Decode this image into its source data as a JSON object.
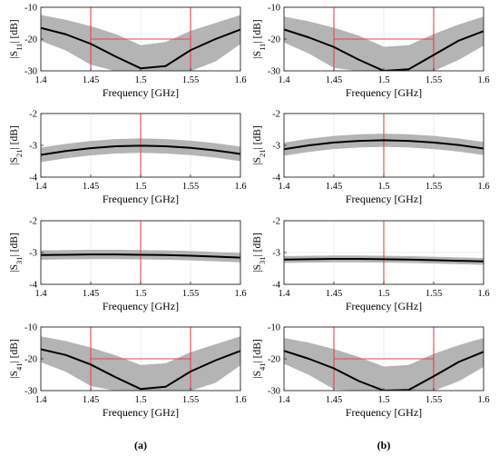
{
  "chart_data": {
    "type": "line",
    "panels_layout": "4 rows x 2 columns",
    "x": [
      1.4,
      1.425,
      1.45,
      1.475,
      1.5,
      1.525,
      1.55,
      1.575,
      1.6
    ],
    "xlim": [
      1.4,
      1.6
    ],
    "xticks": [
      "1.4",
      "1.45",
      "1.5",
      "1.55",
      "1.6"
    ],
    "xlabel": "Frequency [GHz]",
    "grid": true,
    "colors": {
      "nominal": "#000000",
      "monte_carlo_band": "#b4b4b4",
      "spec_lines": "#e8434b"
    },
    "panel_labels": [
      "(a)",
      "(b)"
    ],
    "ylabels": {
      "s11": {
        "pre": "|S",
        "sub": "11",
        "post": "| [dB]"
      },
      "s21": {
        "pre": "|S",
        "sub": "21",
        "post": "| [dB]"
      },
      "s31": {
        "pre": "|S",
        "sub": "31",
        "post": "| [dB]"
      },
      "s41": {
        "pre": "|S",
        "sub": "41",
        "post": "| [dB]"
      }
    },
    "panels": [
      {
        "column": "(a)",
        "param": "s11",
        "ylim": [
          -30,
          -10
        ],
        "yticks": [
          "-10",
          "-20",
          "-30"
        ],
        "nominal": [
          -16.5,
          -18.5,
          -21.5,
          -25.5,
          -29.2,
          -28.5,
          -23.5,
          -20.0,
          -17.0
        ],
        "band_upper": [
          -12.5,
          -14.0,
          -16.0,
          -18.5,
          -22.0,
          -21.0,
          -17.5,
          -15.0,
          -12.5
        ],
        "band_lower": [
          -20.5,
          -23.5,
          -28.0,
          -30.0,
          -30.0,
          -30.0,
          -30.0,
          -27.0,
          -21.5
        ],
        "spec": {
          "vlines": [
            1.45,
            1.55
          ],
          "hline": -20
        }
      },
      {
        "column": "(b)",
        "param": "s11",
        "ylim": [
          -30,
          -10
        ],
        "yticks": [
          "-10",
          "-20",
          "-30"
        ],
        "nominal": [
          -17.0,
          -19.5,
          -22.5,
          -26.5,
          -30.0,
          -29.5,
          -25.0,
          -20.5,
          -17.5
        ],
        "band_upper": [
          -13.0,
          -14.5,
          -16.5,
          -19.0,
          -22.5,
          -22.0,
          -18.5,
          -15.5,
          -13.0
        ],
        "band_lower": [
          -21.0,
          -24.5,
          -29.0,
          -30.0,
          -30.0,
          -30.0,
          -30.0,
          -26.5,
          -22.0
        ],
        "spec": {
          "vlines": [
            1.45,
            1.55
          ],
          "hline": -20
        }
      },
      {
        "column": "(a)",
        "param": "s21",
        "ylim": [
          -4,
          -2
        ],
        "yticks": [
          "-2",
          "-3",
          "-4"
        ],
        "nominal": [
          -3.3,
          -3.18,
          -3.09,
          -3.03,
          -3.01,
          -3.03,
          -3.08,
          -3.16,
          -3.27
        ],
        "band_upper": [
          -3.08,
          -2.96,
          -2.87,
          -2.81,
          -2.79,
          -2.81,
          -2.86,
          -2.94,
          -3.05
        ],
        "band_lower": [
          -3.52,
          -3.4,
          -3.31,
          -3.25,
          -3.23,
          -3.25,
          -3.3,
          -3.38,
          -3.49
        ],
        "spec": {
          "vlines": [
            1.5
          ]
        }
      },
      {
        "column": "(b)",
        "param": "s21",
        "ylim": [
          -4,
          -2
        ],
        "yticks": [
          "-2",
          "-3",
          "-4"
        ],
        "nominal": [
          -3.12,
          -3.0,
          -2.91,
          -2.86,
          -2.84,
          -2.86,
          -2.91,
          -2.99,
          -3.1
        ],
        "band_upper": [
          -2.92,
          -2.8,
          -2.71,
          -2.66,
          -2.64,
          -2.66,
          -2.71,
          -2.79,
          -2.9
        ],
        "band_lower": [
          -3.32,
          -3.2,
          -3.11,
          -3.06,
          -3.04,
          -3.06,
          -3.11,
          -3.19,
          -3.3
        ],
        "spec": {
          "vlines": [
            1.5
          ]
        }
      },
      {
        "column": "(a)",
        "param": "s31",
        "ylim": [
          -4,
          -2
        ],
        "yticks": [
          "-2",
          "-3",
          "-4"
        ],
        "nominal": [
          -3.08,
          -3.07,
          -3.06,
          -3.06,
          -3.07,
          -3.08,
          -3.1,
          -3.13,
          -3.16
        ],
        "band_upper": [
          -2.94,
          -2.93,
          -2.92,
          -2.92,
          -2.93,
          -2.94,
          -2.96,
          -2.99,
          -3.02
        ],
        "band_lower": [
          -3.22,
          -3.21,
          -3.2,
          -3.2,
          -3.21,
          -3.22,
          -3.24,
          -3.27,
          -3.3
        ],
        "spec": {
          "vlines": [
            1.5
          ]
        }
      },
      {
        "column": "(b)",
        "param": "s31",
        "ylim": [
          -4,
          -2
        ],
        "yticks": [
          "-2",
          "-3",
          "-4"
        ],
        "nominal": [
          -3.22,
          -3.21,
          -3.2,
          -3.2,
          -3.21,
          -3.22,
          -3.24,
          -3.26,
          -3.28
        ],
        "band_upper": [
          -3.12,
          -3.11,
          -3.1,
          -3.1,
          -3.11,
          -3.12,
          -3.14,
          -3.16,
          -3.18
        ],
        "band_lower": [
          -3.32,
          -3.31,
          -3.3,
          -3.3,
          -3.31,
          -3.32,
          -3.34,
          -3.36,
          -3.38
        ],
        "spec": {
          "vlines": [
            1.5
          ]
        }
      },
      {
        "column": "(a)",
        "param": "s41",
        "ylim": [
          -30,
          -10
        ],
        "yticks": [
          "-10",
          "-20",
          "-30"
        ],
        "nominal": [
          -17.0,
          -18.8,
          -21.8,
          -25.8,
          -29.5,
          -28.8,
          -24.0,
          -20.5,
          -17.5
        ],
        "band_upper": [
          -13.0,
          -14.5,
          -16.5,
          -19.0,
          -22.0,
          -21.5,
          -18.0,
          -15.5,
          -13.0
        ],
        "band_lower": [
          -21.0,
          -24.0,
          -28.5,
          -30.0,
          -30.0,
          -30.0,
          -30.0,
          -27.5,
          -22.0
        ],
        "spec": {
          "vlines": [
            1.45,
            1.55
          ],
          "hline": -20
        }
      },
      {
        "column": "(b)",
        "param": "s41",
        "ylim": [
          -30,
          -10
        ],
        "yticks": [
          "-10",
          "-20",
          "-30"
        ],
        "nominal": [
          -17.5,
          -20.0,
          -23.0,
          -27.0,
          -30.0,
          -29.8,
          -25.5,
          -21.0,
          -17.8
        ],
        "band_upper": [
          -13.5,
          -15.0,
          -17.0,
          -19.5,
          -22.5,
          -22.0,
          -18.5,
          -15.8,
          -13.5
        ],
        "band_lower": [
          -21.5,
          -25.0,
          -29.5,
          -30.0,
          -30.0,
          -30.0,
          -30.0,
          -27.0,
          -22.5
        ],
        "spec": {
          "vlines": [
            1.45,
            1.55
          ],
          "hline": -20
        }
      }
    ]
  }
}
